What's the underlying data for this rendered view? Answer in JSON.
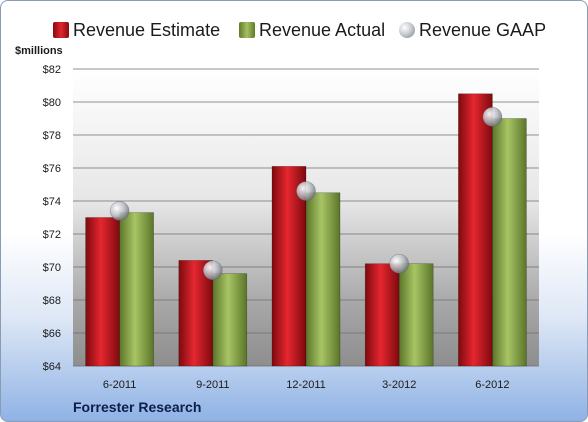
{
  "chart_data": {
    "type": "bar",
    "categories": [
      "6-2011",
      "9-2011",
      "12-2011",
      "3-2012",
      "6-2012"
    ],
    "series": [
      {
        "name": "Revenue Estimate",
        "values": [
          73.0,
          70.4,
          76.1,
          70.2,
          80.5
        ],
        "color": "#c0111b"
      },
      {
        "name": "Revenue Actual",
        "values": [
          73.3,
          69.6,
          74.5,
          70.2,
          79.0
        ],
        "color": "#8aa54a"
      },
      {
        "name": "Revenue GAAP",
        "values": [
          73.4,
          69.8,
          74.6,
          70.2,
          79.1
        ],
        "color": "#b9bcc3",
        "marker": "sphere"
      }
    ],
    "ylabel": "$millions",
    "ylim": [
      64,
      82
    ],
    "yticks": [
      "$64",
      "$66",
      "$68",
      "$70",
      "$72",
      "$74",
      "$76",
      "$78",
      "$80",
      "$82"
    ],
    "grid": true,
    "legend_position": "top"
  },
  "footer": "Forrester Research"
}
